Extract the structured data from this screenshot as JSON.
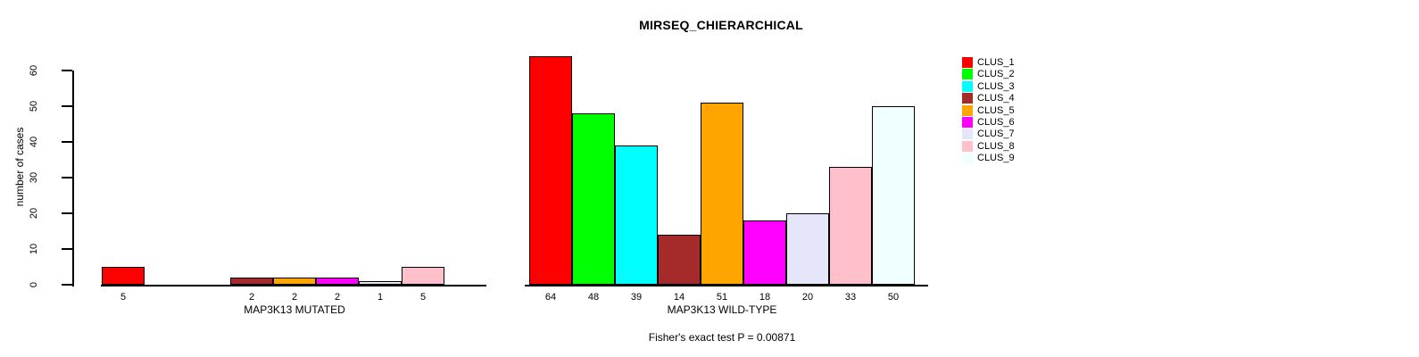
{
  "chart_data": {
    "type": "bar",
    "title": "MIRSEQ_CHIERARCHICAL",
    "ylabel": "number of cases",
    "ylim": [
      0,
      60
    ],
    "yticks": [
      0,
      10,
      20,
      30,
      40,
      50,
      60
    ],
    "grid": false,
    "legend_position": "right",
    "legend_entries": [
      "CLUS_1",
      "CLUS_2",
      "CLUS_3",
      "CLUS_4",
      "CLUS_5",
      "CLUS_6",
      "CLUS_7",
      "CLUS_8",
      "CLUS_9"
    ],
    "cluster_colors": [
      "#FF0000",
      "#00FF00",
      "#00FFFF",
      "#A52A2A",
      "#FFA500",
      "#FF00FF",
      "#E6E6FA",
      "#FFC0CB",
      "#F0FFFF"
    ],
    "panels": [
      {
        "xlabel": "MAP3K13 MUTATED",
        "categories": [
          "CLUS_1",
          "CLUS_2",
          "CLUS_3",
          "CLUS_4",
          "CLUS_5",
          "CLUS_6",
          "CLUS_7",
          "CLUS_8",
          "CLUS_9"
        ],
        "values": [
          5,
          0,
          0,
          2,
          2,
          2,
          1,
          5,
          0
        ],
        "bar_labels": [
          "5",
          "",
          "",
          "2",
          "2",
          "2",
          "1",
          "5",
          ""
        ]
      },
      {
        "xlabel": "MAP3K13 WILD-TYPE",
        "categories": [
          "CLUS_1",
          "CLUS_2",
          "CLUS_3",
          "CLUS_4",
          "CLUS_5",
          "CLUS_6",
          "CLUS_7",
          "CLUS_8",
          "CLUS_9"
        ],
        "values": [
          64,
          48,
          39,
          14,
          51,
          18,
          20,
          33,
          50
        ],
        "bar_labels": [
          "64",
          "48",
          "39",
          "14",
          "51",
          "18",
          "20",
          "33",
          "50"
        ]
      }
    ],
    "annotation": "Fisher's exact test P = 0.00871"
  }
}
